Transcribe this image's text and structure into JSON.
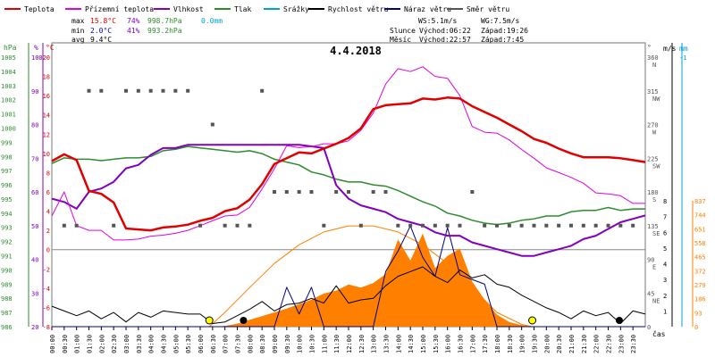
{
  "chart_data": {
    "type": "line",
    "title": "4.4.2018",
    "legend": [
      {
        "label": "Teplota",
        "color": "#e00000"
      },
      {
        "label": "Přízemní teplota",
        "color": "#e000e0"
      },
      {
        "label": "Vlhkost",
        "color": "#8000c0"
      },
      {
        "label": "Tlak",
        "color": "#2e8b2e"
      },
      {
        "label": "Srážky",
        "color": "#00a0d0"
      },
      {
        "label": "Rychlost větru",
        "color": "#000000"
      },
      {
        "label": "Náraz větru",
        "color": "#000080"
      },
      {
        "label": "Směr větru",
        "color": "#555555"
      }
    ],
    "stats": {
      "max": {
        "label": "max",
        "temp": "15.8°C",
        "hum": "74%",
        "press": "998.7hPa",
        "rain": "0.0mm"
      },
      "min": {
        "label": "min",
        "temp": "2.0°C",
        "hum": "41%",
        "press": "993.2hPa"
      },
      "avg": {
        "label": "avg",
        "temp": "9.4°C"
      }
    },
    "wind_info": {
      "ws": "WS:5.1m/s",
      "wg": "WG:7.5m/s"
    },
    "sun_info": {
      "label": "Slunce",
      "rise": "Východ:06:22",
      "set": "Západ:19:26"
    },
    "moon_info": {
      "label": "Měsíc",
      "rise": "Východ:22:57",
      "set": "Západ:7:45"
    },
    "axes": {
      "hpa": {
        "label": "hPa",
        "ticks": [
          "1005",
          "1004",
          "1003",
          "1002",
          "1001",
          "1000",
          "999",
          "998",
          "997",
          "996",
          "995",
          "994",
          "993",
          "992",
          "991",
          "990",
          "989",
          "988",
          "987",
          "986"
        ],
        "range": [
          986,
          1005
        ]
      },
      "pct": {
        "label": "%",
        "ticks": [
          "100",
          "90",
          "80",
          "70",
          "60",
          "50",
          "40",
          "30",
          "20"
        ],
        "range": [
          20,
          100
        ]
      },
      "temp": {
        "label": "°C",
        "ticks": [
          "20",
          "18",
          "16",
          "14",
          "12",
          "10",
          "8",
          "6",
          "4",
          "2",
          "0",
          "-2",
          "-4",
          "-6",
          "-8"
        ],
        "range": [
          -8,
          20
        ]
      },
      "dir": {
        "label": "°",
        "ticks": [
          [
            "360",
            "N"
          ],
          [
            "315",
            "NW"
          ],
          [
            "270",
            "W"
          ],
          [
            "225",
            "SW"
          ],
          [
            "180",
            "S"
          ],
          [
            "135",
            "SE"
          ],
          [
            "90",
            "E"
          ],
          [
            "45",
            "NE"
          ],
          [
            "0",
            ""
          ]
        ]
      },
      "ms": {
        "label": "m/s",
        "ticks": [
          "8",
          "7",
          "6",
          "5",
          "4",
          "3",
          "2",
          "1"
        ]
      },
      "mm": {
        "label": "mm",
        "top": "-1"
      },
      "solar": {
        "ticks": [
          "837",
          "744",
          "651",
          "558",
          "465",
          "372",
          "279",
          "186",
          "93",
          "0"
        ]
      },
      "x_label": "čas",
      "time_ticks": [
        "00:00",
        "00:30",
        "01:00",
        "01:30",
        "02:00",
        "02:30",
        "03:00",
        "03:30",
        "04:00",
        "04:30",
        "05:00",
        "05:30",
        "06:00",
        "06:30",
        "07:00",
        "07:30",
        "08:00",
        "08:30",
        "09:00",
        "09:30",
        "10:00",
        "10:30",
        "11:00",
        "11:30",
        "12:00",
        "12:30",
        "13:00",
        "13:30",
        "14:00",
        "14:30",
        "15:00",
        "15:30",
        "16:00",
        "16:30",
        "17:00",
        "17:30",
        "18:00",
        "18:30",
        "19:00",
        "19:30",
        "20:00",
        "20:30",
        "21:00",
        "21:30",
        "22:00",
        "22:30",
        "23:00",
        "23:30"
      ]
    },
    "series": [
      {
        "name": "Teplota",
        "color": "#e00000",
        "width": 2.5,
        "axis": "temp",
        "x": [
          0,
          0.5,
          1,
          1.5,
          2,
          2.5,
          3,
          3.5,
          4,
          4.5,
          5,
          5.5,
          6,
          6.5,
          7,
          7.5,
          8,
          8.5,
          9,
          9.5,
          10,
          10.5,
          11,
          11.5,
          12,
          12.5,
          13,
          13.5,
          14,
          14.5,
          15,
          15.5,
          16,
          16.5,
          17,
          17.5,
          18,
          18.5,
          19,
          19.5,
          20,
          20.5,
          21,
          21.5,
          22,
          22.5,
          23,
          23.5,
          24
        ],
        "y": [
          9.2,
          9.9,
          9.3,
          6.1,
          5.8,
          4.9,
          2.2,
          2.1,
          2.0,
          2.3,
          2.4,
          2.6,
          3.0,
          3.3,
          4.0,
          4.3,
          5.2,
          6.8,
          8.9,
          9.5,
          10.1,
          10.0,
          10.5,
          11.0,
          11.6,
          12.6,
          14.6,
          15.0,
          15.1,
          15.2,
          15.7,
          15.6,
          15.8,
          15.7,
          14.9,
          14.3,
          13.7,
          13.0,
          12.3,
          11.5,
          11.1,
          10.5,
          10.0,
          9.6,
          9.6,
          9.6,
          9.5,
          9.3,
          9.1
        ]
      },
      {
        "name": "Přízemní teplota",
        "color": "#e000e0",
        "width": 1,
        "axis": "temp",
        "x": [
          0,
          0.5,
          1,
          1.5,
          2,
          2.5,
          3,
          3.5,
          4,
          4.5,
          5,
          5.5,
          6,
          6.5,
          7,
          7.5,
          8,
          8.5,
          9,
          9.5,
          10,
          10.5,
          11,
          11.5,
          12,
          12.5,
          13,
          13.5,
          14,
          14.5,
          15,
          15.5,
          16,
          16.5,
          17,
          17.5,
          18,
          18.5,
          19,
          19.5,
          20,
          20.5,
          21,
          21.5,
          22,
          22.5,
          23,
          23.5,
          24
        ],
        "y": [
          3.5,
          6.0,
          2.5,
          2.0,
          2.0,
          1.0,
          1.0,
          1.1,
          1.4,
          1.5,
          1.7,
          2.0,
          2.5,
          3.0,
          3.5,
          3.6,
          4.4,
          6.3,
          8.4,
          10.8,
          10.6,
          10.7,
          11.0,
          11.0,
          11.3,
          12.4,
          14.2,
          17.2,
          18.8,
          18.5,
          19.0,
          18.0,
          17.8,
          16.0,
          12.8,
          12.2,
          12.1,
          11.4,
          10.4,
          9.5,
          8.5,
          8.0,
          7.5,
          6.9,
          5.9,
          5.8,
          5.6,
          4.8,
          4.8
        ]
      },
      {
        "name": "Vlhkost",
        "color": "#8000c0",
        "width": 2,
        "axis": "pct",
        "x": [
          0,
          0.5,
          1,
          1.5,
          2,
          2.5,
          3,
          3.5,
          4,
          4.5,
          5,
          5.5,
          6,
          6.5,
          7,
          7.5,
          8,
          8.5,
          9,
          9.5,
          10,
          10.5,
          11,
          11.5,
          12,
          12.5,
          13,
          13.5,
          14,
          14.5,
          15,
          15.5,
          16,
          16.5,
          17,
          17.5,
          18,
          18.5,
          19,
          19.5,
          20,
          20.5,
          21,
          21.5,
          22,
          22.5,
          23,
          23.5,
          24
        ],
        "y": [
          58,
          57,
          55,
          60,
          61,
          63,
          67,
          68,
          71,
          73,
          73,
          74,
          74,
          74,
          74,
          74,
          74,
          74,
          74,
          74,
          74,
          73.5,
          73,
          62,
          58,
          56,
          55,
          54,
          52,
          51,
          50,
          48,
          47,
          47,
          45,
          44,
          43,
          42,
          41,
          41,
          42,
          43,
          44,
          46,
          47,
          49,
          51,
          52,
          53
        ]
      },
      {
        "name": "Tlak",
        "color": "#2e8b2e",
        "width": 1.5,
        "axis": "hpa",
        "x": [
          0,
          0.5,
          1,
          1.5,
          2,
          2.5,
          3,
          3.5,
          4,
          4.5,
          5,
          5.5,
          6,
          6.5,
          7,
          7.5,
          8,
          8.5,
          9,
          9.5,
          10,
          10.5,
          11,
          11.5,
          12,
          12.5,
          13,
          13.5,
          14,
          14.5,
          15,
          15.5,
          16,
          16.5,
          17,
          17.5,
          18,
          18.5,
          19,
          19.5,
          20,
          20.5,
          21,
          21.5,
          22,
          22.5,
          23,
          23.5,
          24
        ],
        "y": [
          997.5,
          997.9,
          997.8,
          997.8,
          997.7,
          997.8,
          997.9,
          997.9,
          998.0,
          998.4,
          998.5,
          998.7,
          998.6,
          998.5,
          998.4,
          998.3,
          998.4,
          998.2,
          997.8,
          997.6,
          997.4,
          996.9,
          996.7,
          996.4,
          996.2,
          996.2,
          996.0,
          995.9,
          995.6,
          995.2,
          994.8,
          994.5,
          994.0,
          993.8,
          993.5,
          993.3,
          993.2,
          993.3,
          993.5,
          993.6,
          993.8,
          993.8,
          994.1,
          994.2,
          994.2,
          994.4,
          994.2,
          994.3,
          994.3
        ]
      },
      {
        "name": "Rychlost větru",
        "color": "#000000",
        "width": 1,
        "axis": "ms",
        "x": [
          0,
          0.5,
          1,
          1.5,
          2,
          2.5,
          3,
          3.5,
          4,
          4.5,
          5,
          5.5,
          6,
          6.5,
          7,
          7.5,
          8,
          8.5,
          9,
          9.5,
          10,
          10.5,
          11,
          11.5,
          12,
          12.5,
          13,
          13.5,
          14,
          14.5,
          15,
          15.5,
          16,
          16.5,
          17,
          17.5,
          18,
          18.5,
          19,
          19.5,
          20,
          20.5,
          21,
          21.5,
          22,
          22.5,
          23,
          23.5,
          24
        ],
        "y": [
          1.3,
          1.0,
          0.7,
          1.0,
          0.5,
          0.9,
          0.3,
          0.9,
          0.6,
          1.0,
          0.9,
          0.8,
          0.8,
          0.2,
          0.3,
          0.7,
          1.1,
          1.6,
          1.0,
          1.4,
          1.5,
          1.8,
          1.5,
          2.6,
          1.5,
          1.7,
          1.8,
          2.6,
          3.2,
          3.5,
          3.8,
          3.2,
          2.8,
          3.6,
          3.1,
          3.3,
          2.7,
          2.5,
          2.0,
          1.6,
          1.2,
          0.9,
          0.5,
          1.0,
          0.7,
          0.9,
          0.2,
          1.0,
          0.8
        ]
      },
      {
        "name": "Náraz větru",
        "color": "#000080",
        "width": 1,
        "axis": "ms",
        "x": [
          0,
          0.5,
          1,
          1.5,
          2,
          2.5,
          3,
          3.5,
          4,
          4.5,
          5,
          5.5,
          6,
          6.5,
          7,
          7.5,
          8,
          8.5,
          9,
          9.5,
          10,
          10.5,
          11,
          11.5,
          12,
          12.5,
          13,
          13.5,
          14,
          14.5,
          15,
          15.5,
          16,
          16.5,
          17,
          17.5,
          18,
          18.5,
          19,
          19.5,
          20,
          20.5,
          21,
          21.5,
          22,
          22.5,
          23,
          23.5,
          24
        ],
        "y": [
          0,
          0,
          0,
          0,
          0,
          0,
          0,
          0,
          0,
          0,
          0,
          0,
          0,
          0,
          0,
          0,
          0,
          0,
          0,
          2.5,
          0.8,
          2.5,
          0,
          0,
          0,
          0,
          0,
          3.5,
          4.8,
          6.4,
          4.4,
          3.2,
          6.3,
          3.3,
          3.0,
          2.7,
          0,
          0,
          0,
          0,
          0,
          0,
          0,
          0,
          0,
          0,
          0,
          0,
          0
        ]
      },
      {
        "name": "Sluneční záření",
        "color": "#ff8000",
        "width": 1,
        "axis": "solar",
        "fill": true,
        "x": [
          6.5,
          7,
          7.5,
          8,
          8.5,
          9,
          9.5,
          10,
          10.5,
          11,
          11.5,
          12,
          12.5,
          13,
          13.5,
          14,
          14.5,
          15,
          15.5,
          16,
          16.5,
          17,
          17.5,
          18,
          18.5,
          19,
          19.5
        ],
        "y": [
          0,
          5,
          20,
          45,
          70,
          95,
          120,
          150,
          180,
          220,
          240,
          280,
          260,
          290,
          350,
          580,
          440,
          620,
          390,
          470,
          520,
          300,
          180,
          80,
          30,
          10,
          0
        ]
      },
      {
        "name": "Teoretické záření",
        "color": "#ff8000",
        "width": 1,
        "axis": "solar",
        "x": [
          6.37,
          7,
          8,
          9,
          10,
          11,
          12,
          13,
          14,
          15,
          16,
          17,
          18,
          19,
          19.43
        ],
        "y": [
          0,
          95,
          260,
          420,
          545,
          630,
          670,
          670,
          630,
          545,
          420,
          260,
          95,
          15,
          0
        ]
      }
    ],
    "wind_direction_points": {
      "x": [
        0.5,
        1,
        1.5,
        2,
        2.5,
        3,
        3.5,
        4,
        4.5,
        5,
        5.5,
        6,
        6.5,
        7,
        7.5,
        8,
        8.5,
        9,
        9.5,
        10,
        10.5,
        11,
        11.5,
        12,
        12.5,
        13,
        13.5,
        14,
        14.5,
        15,
        15.5,
        16,
        16.5,
        17,
        17.5,
        18,
        18.5,
        19,
        19.5,
        20,
        20.5,
        21,
        21.5,
        22,
        22.5,
        23,
        23.5
      ],
      "y": [
        135,
        135,
        315,
        315,
        135,
        315,
        315,
        315,
        315,
        315,
        315,
        135,
        270,
        135,
        135,
        135,
        315,
        180,
        180,
        180,
        180,
        135,
        180,
        180,
        135,
        180,
        180,
        135,
        135,
        135,
        135,
        135,
        135,
        180,
        135,
        135,
        135,
        135,
        135,
        135,
        135,
        135,
        135,
        135,
        135,
        135,
        135
      ]
    }
  }
}
